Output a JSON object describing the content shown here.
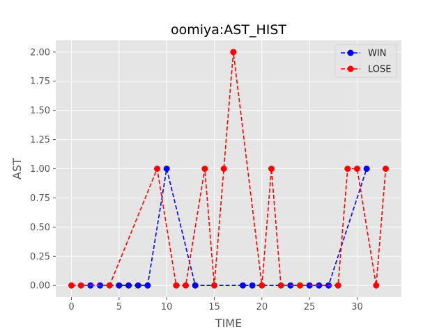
{
  "chart_data": {
    "type": "line",
    "title": "oomiya:AST_HIST",
    "xlabel": "TIME",
    "ylabel": "AST",
    "xlim": [
      -1.65,
      34.65
    ],
    "ylim": [
      -0.1,
      2.1
    ],
    "x_ticks": [
      0,
      5,
      10,
      15,
      20,
      25,
      30
    ],
    "y_ticks": [
      0.0,
      0.25,
      0.5,
      0.75,
      1.0,
      1.25,
      1.5,
      1.75,
      2.0
    ],
    "x_tick_labels": [
      "0",
      "5",
      "10",
      "15",
      "20",
      "25",
      "30"
    ],
    "y_tick_labels": [
      "0.00",
      "0.25",
      "0.50",
      "0.75",
      "1.00",
      "1.25",
      "1.50",
      "1.75",
      "2.00"
    ],
    "grid": true,
    "legend_position": "top-right",
    "series": [
      {
        "name": "WIN",
        "color": "#0000ff",
        "line_style": "dashed",
        "marker": "circle",
        "points": [
          [
            2,
            0
          ],
          [
            3,
            0
          ],
          [
            5,
            0
          ],
          [
            6,
            0
          ],
          [
            7,
            0
          ],
          [
            8,
            0
          ],
          [
            10,
            1
          ],
          [
            13,
            0
          ],
          [
            18,
            0
          ],
          [
            19,
            0
          ],
          [
            23,
            0
          ],
          [
            25,
            0
          ],
          [
            26,
            0
          ],
          [
            27,
            0
          ],
          [
            31,
            1
          ]
        ]
      },
      {
        "name": "LOSE",
        "color": "#ff0000",
        "line_style": "dashed",
        "marker": "circle",
        "points": [
          [
            0,
            0
          ],
          [
            1,
            0
          ],
          [
            4,
            0
          ],
          [
            9,
            1
          ],
          [
            11,
            0
          ],
          [
            12,
            0
          ],
          [
            14,
            1
          ],
          [
            15,
            0
          ],
          [
            16,
            1
          ],
          [
            17,
            2
          ],
          [
            20,
            0
          ],
          [
            21,
            1
          ],
          [
            22,
            0
          ],
          [
            24,
            0
          ],
          [
            28,
            0
          ],
          [
            29,
            1
          ],
          [
            30,
            1
          ],
          [
            32,
            0
          ],
          [
            33,
            1
          ]
        ]
      }
    ]
  },
  "colors": {
    "plot_background": "#e5e5e5",
    "grid": "#ffffff",
    "tick": "#555555"
  }
}
